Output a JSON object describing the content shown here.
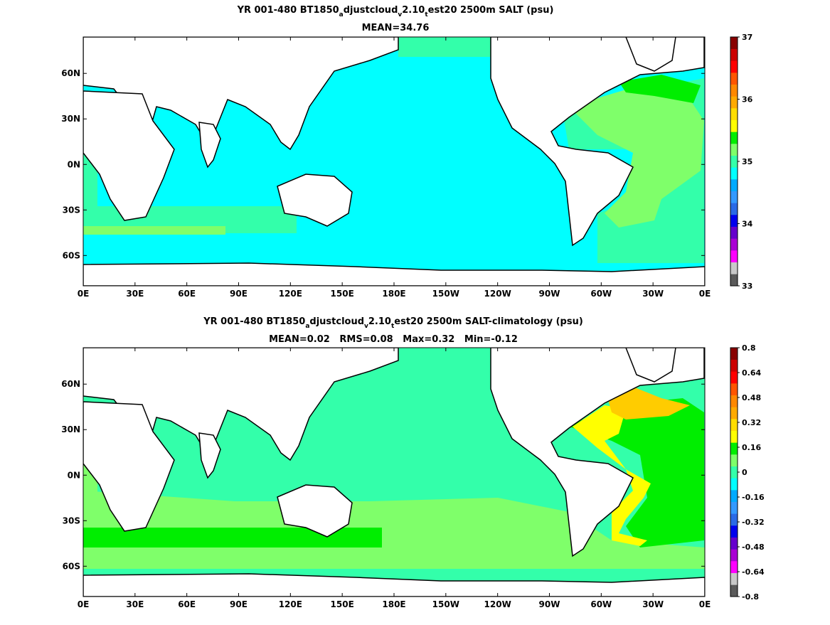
{
  "colors": {
    "land": "#ffffff",
    "coast": "#000000",
    "salt_cyan": "#00ffff",
    "salt_teal": "#33ffaa",
    "salt_lightgreen": "#7fff6a",
    "salt_green": "#00ee00",
    "diff_yellow": "#ffff00",
    "diff_gold": "#ffcc00"
  },
  "chart_data": [
    {
      "type": "heatmap",
      "title_parts": [
        "YR 001-480 BT1850",
        "a",
        "djustcloud",
        "v",
        "2.10",
        "t",
        "est20 2500m SALT (psu)"
      ],
      "subtitle": "MEAN=34.76",
      "x_tick_labels": [
        "0E",
        "30E",
        "60E",
        "90E",
        "120E",
        "150E",
        "180E",
        "150W",
        "120W",
        "90W",
        "60W",
        "30W",
        "0E"
      ],
      "y_tick_labels": [
        "60N",
        "30N",
        "0N",
        "30S",
        "60S"
      ],
      "y_tick_values": [
        60,
        30,
        0,
        -30,
        -60
      ],
      "xlim": [
        0,
        360
      ],
      "ylim": [
        -80,
        84
      ],
      "colorbar": {
        "range": [
          33,
          37
        ],
        "levels": [
          33,
          33.2,
          33.4,
          33.6,
          33.8,
          34,
          34.2,
          34.4,
          34.6,
          34.8,
          35,
          35.2,
          35.4,
          35.6,
          35.8,
          36,
          36.2,
          36.4,
          36.6,
          36.8,
          37
        ],
        "tick_labels": [
          "37",
          "36",
          "35",
          "34",
          "33"
        ],
        "tick_values": [
          37,
          36,
          35,
          34,
          33
        ],
        "colors": [
          "#5a5a5a",
          "#c8c8c8",
          "#ff00ff",
          "#aa00d4",
          "#6600cc",
          "#0000ee",
          "#2a6ae6",
          "#3399ff",
          "#00aaff",
          "#00ffff",
          "#33ffaa",
          "#7fff6a",
          "#00ee00",
          "#ffff00",
          "#ffdd00",
          "#ffaa00",
          "#ff8800",
          "#ff5500",
          "#ff0000",
          "#cc0000",
          "#880000"
        ]
      },
      "grid": false
    },
    {
      "type": "heatmap",
      "title_parts": [
        "YR 001-480 BT1850",
        "a",
        "djustcloud",
        "v",
        "2.10",
        "t",
        "est20 2500m SALT-climatology (psu)"
      ],
      "subtitle": "MEAN=0.02   RMS=0.08   Max=0.32   Min=-0.12",
      "x_tick_labels": [
        "0E",
        "30E",
        "60E",
        "90E",
        "120E",
        "150E",
        "180E",
        "150W",
        "120W",
        "90W",
        "60W",
        "30W",
        "0E"
      ],
      "y_tick_labels": [
        "60N",
        "30N",
        "0N",
        "30S",
        "60S"
      ],
      "y_tick_values": [
        60,
        30,
        0,
        -30,
        -60
      ],
      "xlim": [
        0,
        360
      ],
      "ylim": [
        -80,
        84
      ],
      "colorbar": {
        "range": [
          -0.8,
          0.8
        ],
        "levels": [
          -0.8,
          -0.72,
          -0.64,
          -0.56,
          -0.48,
          -0.4,
          -0.32,
          -0.24,
          -0.16,
          -0.08,
          0,
          0.08,
          0.16,
          0.24,
          0.32,
          0.4,
          0.48,
          0.56,
          0.64,
          0.72,
          0.8
        ],
        "tick_labels": [
          "0.8",
          "0.64",
          "0.48",
          "0.32",
          "0.16",
          "0",
          "-0.16",
          "-0.32",
          "-0.48",
          "-0.64",
          "-0.8"
        ],
        "tick_values": [
          0.8,
          0.64,
          0.48,
          0.32,
          0.16,
          0,
          -0.16,
          -0.32,
          -0.48,
          -0.64,
          -0.8
        ],
        "colors": [
          "#5a5a5a",
          "#c8c8c8",
          "#ff00ff",
          "#aa00d4",
          "#6600cc",
          "#0000ee",
          "#2a6ae6",
          "#3399ff",
          "#00aaff",
          "#00ffff",
          "#33ffaa",
          "#7fff6a",
          "#00ee00",
          "#ffff00",
          "#ffdd00",
          "#ffaa00",
          "#ff8800",
          "#ff5500",
          "#ff0000",
          "#cc0000",
          "#880000"
        ]
      },
      "grid": false
    }
  ]
}
